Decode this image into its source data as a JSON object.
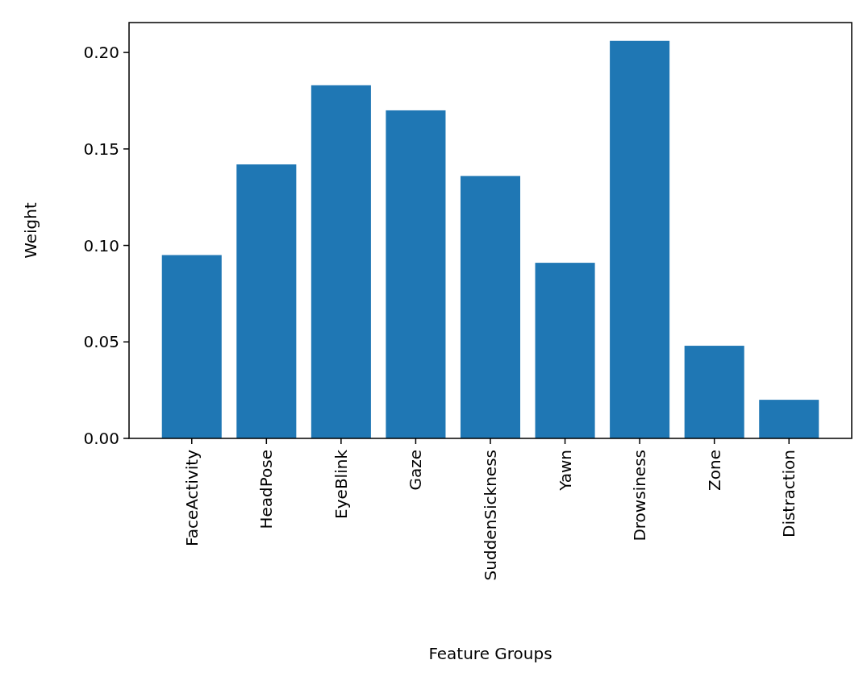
{
  "chart_data": {
    "type": "bar",
    "xlabel": "Feature Groups",
    "ylabel": "Weight",
    "categories": [
      "FaceActivity",
      "HeadPose",
      "EyeBlink",
      "Gaze",
      "SuddenSickness",
      "Yawn",
      "Drowsiness",
      "Zone",
      "Distraction"
    ],
    "values": [
      0.095,
      0.142,
      0.183,
      0.17,
      0.136,
      0.091,
      0.206,
      0.048,
      0.02
    ],
    "color": "#1f77b4",
    "ylim": [
      0,
      0.2155
    ],
    "yticks": [
      {
        "value": 0,
        "label": "0.00"
      },
      {
        "value": 0.05,
        "label": "0.05"
      },
      {
        "value": 0.1,
        "label": "0.10"
      },
      {
        "value": 0.15,
        "label": "0.15"
      },
      {
        "value": 0.2,
        "label": "0.20"
      }
    ],
    "grid": false
  }
}
